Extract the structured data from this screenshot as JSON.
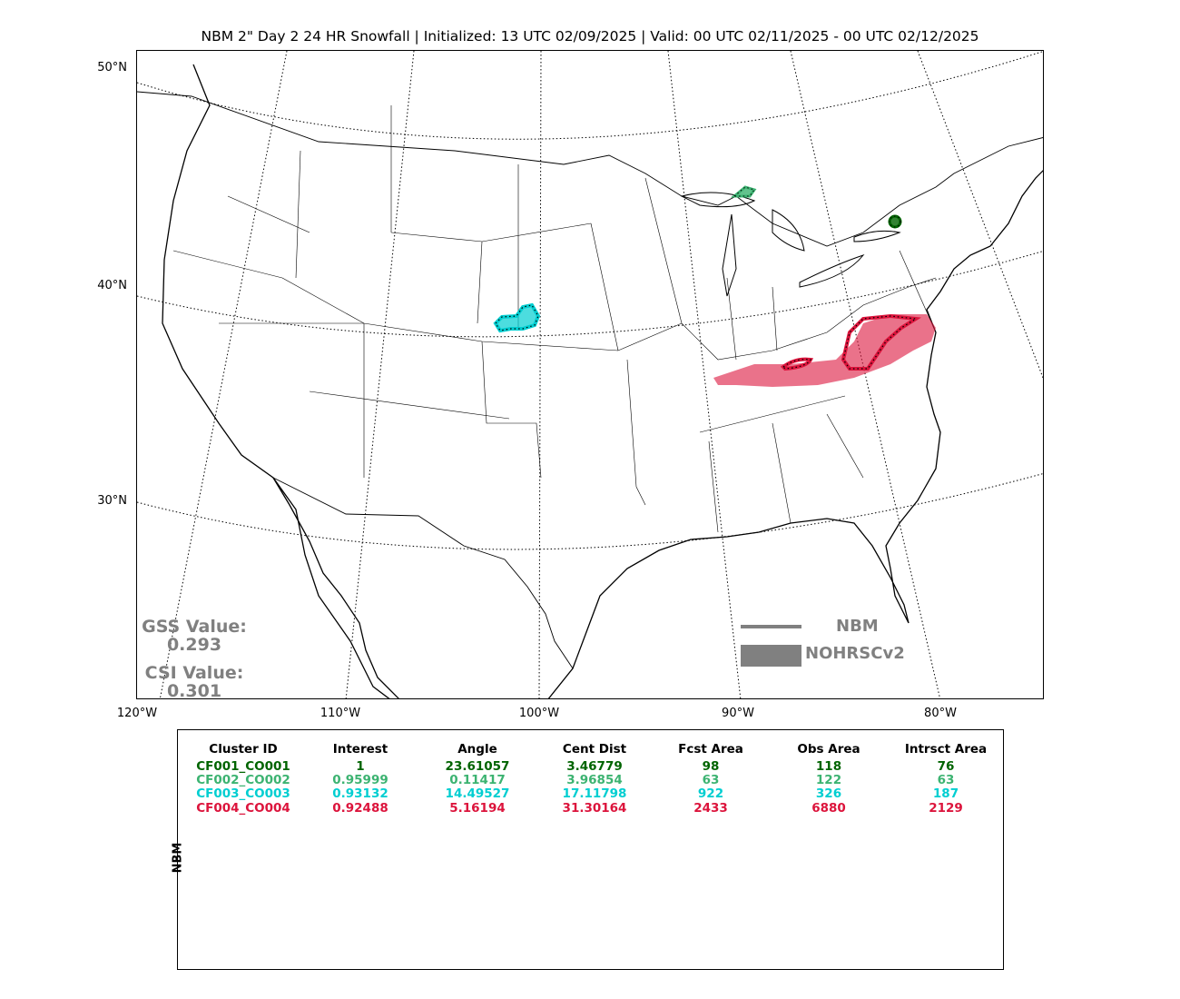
{
  "title": "NBM 2\" Day 2 24 HR Snowfall | Initialized: 13 UTC 02/09/2025 | Valid: 00 UTC 02/11/2025 - 00 UTC 02/12/2025",
  "lat_labels": [
    "50°N",
    "40°N",
    "30°N"
  ],
  "lon_labels": [
    "120°W",
    "110°W",
    "100°W",
    "90°W",
    "80°W"
  ],
  "scores": {
    "gss_label": "GSS Value:",
    "gss_value": "0.293",
    "csi_label": "CSI Value:",
    "csi_value": "0.301"
  },
  "legend": {
    "line_label": "NBM",
    "fill_label": "NOHRSCv2",
    "color": "#808080"
  },
  "table": {
    "row_label": "NBM",
    "headers": [
      "Cluster ID",
      "Interest",
      "Angle",
      "Cent Dist",
      "Fcst Area",
      "Obs Area",
      "Intrsct Area"
    ],
    "rows": [
      {
        "color": "#006400",
        "cells": [
          "CF001_CO001",
          "1",
          "23.61057",
          "3.46779",
          "98",
          "118",
          "76"
        ]
      },
      {
        "color": "#3cb371",
        "cells": [
          "CF002_CO002",
          "0.95999",
          "0.11417",
          "3.96854",
          "63",
          "122",
          "63"
        ]
      },
      {
        "color": "#00ced1",
        "cells": [
          "CF003_CO003",
          "0.93132",
          "14.49527",
          "17.11798",
          "922",
          "326",
          "187"
        ]
      },
      {
        "color": "#dc143c",
        "cells": [
          "CF004_CO004",
          "0.92488",
          "5.16194",
          "31.30164",
          "2433",
          "6880",
          "2129"
        ]
      }
    ]
  },
  "clusters": [
    {
      "id": "CF001_CO001",
      "color": "#006400",
      "region": "southern Ontario"
    },
    {
      "id": "CF002_CO002",
      "color": "#3cb371",
      "region": "upper Michigan"
    },
    {
      "id": "CF003_CO003",
      "color": "#00ced1",
      "region": "northwest Kansas"
    },
    {
      "id": "CF004_CO004",
      "color": "#dc143c",
      "region": "Kentucky to Virginia"
    }
  ]
}
